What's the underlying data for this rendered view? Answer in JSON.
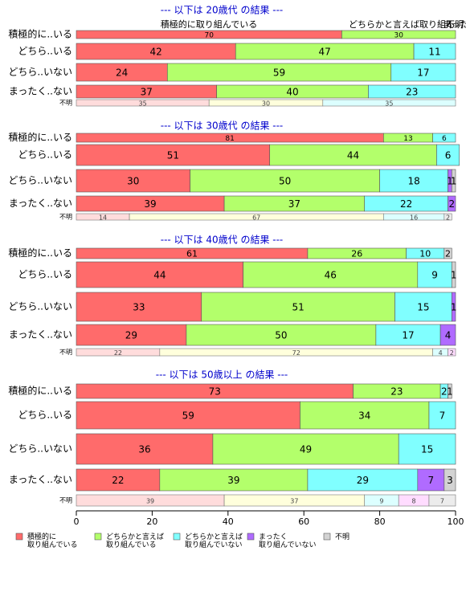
{
  "colors": {
    "c1": "#ff6b6b",
    "c2": "#b3ff6b",
    "c3": "#80ffff",
    "c4": "#b06bff",
    "c5": "#d3d3d3",
    "unknown_fills": [
      "#ffdcdc",
      "#ffffdc",
      "#dcffff",
      "#ffdcff",
      "#ececec"
    ],
    "title": "#0000cc"
  },
  "axis": {
    "ticks": [
      "0",
      "20",
      "40",
      "60",
      "80",
      "100"
    ]
  },
  "legend": {
    "items": [
      {
        "text": "積極的に\n取り組んでいる",
        "color": "#ff6b6b"
      },
      {
        "text": "どちらかと言えば\n取り組んでいる",
        "color": "#b3ff6b"
      },
      {
        "text": "どちらかと言えば\n取り組んでいない",
        "color": "#80ffff"
      },
      {
        "text": "まったく\n取り組んでいない",
        "color": "#b06bff"
      },
      {
        "text": "不明",
        "color": "#d3d3d3"
      }
    ]
  },
  "header_labels": {
    "left": "積極的に取り組んでいる",
    "right": "どちらかと言えば取り組ん",
    "overlap_a": "まった",
    "overlap_b": "不明"
  },
  "chart_data": {
    "type": "bar",
    "orientation": "horizontal-stacked",
    "xlim": [
      0,
      100
    ],
    "series_names": [
      "積極的に取り組んでいる",
      "どちらかと言えば取り組んでいる",
      "どちらかと言えば取り組んでいない",
      "まったく取り組んでいない",
      "不明"
    ],
    "panels": [
      {
        "title": "--- 以下は 20歳代 の結果 ---",
        "rows": [
          {
            "label": "積極的に..いる",
            "values": [
              70,
              30,
              0,
              0,
              0
            ]
          },
          {
            "label": "どちら..いる",
            "values": [
              42,
              47,
              11,
              0,
              0
            ]
          },
          {
            "label": "どちら..いない",
            "values": [
              24,
              59,
              17,
              0,
              0
            ]
          },
          {
            "label": "まったく..ない",
            "values": [
              37,
              40,
              23,
              0,
              0
            ]
          }
        ],
        "unknown": {
          "label": "不明",
          "values": [
            35,
            30,
            35,
            0,
            0
          ]
        }
      },
      {
        "title": "--- 以下は 30歳代 の結果 ---",
        "rows": [
          {
            "label": "積極的に..いる",
            "values": [
              81,
              13,
              6,
              0,
              0
            ]
          },
          {
            "label": "どちら..いる",
            "values": [
              51,
              44,
              6,
              0,
              0
            ]
          },
          {
            "label": "どちら..いない",
            "values": [
              30,
              50,
              18,
              1,
              1
            ]
          },
          {
            "label": "まったく..ない",
            "values": [
              39,
              37,
              22,
              2,
              0
            ]
          }
        ],
        "unknown": {
          "label": "不明",
          "values": [
            14,
            67,
            16,
            0,
            2
          ]
        }
      },
      {
        "title": "--- 以下は 40歳代 の結果 ---",
        "rows": [
          {
            "label": "積極的に..いる",
            "values": [
              61,
              26,
              10,
              0,
              2
            ]
          },
          {
            "label": "どちら..いる",
            "values": [
              44,
              46,
              9,
              0,
              1
            ]
          },
          {
            "label": "どちら..いない",
            "values": [
              33,
              51,
              15,
              1,
              0
            ]
          },
          {
            "label": "まったく..ない",
            "values": [
              29,
              50,
              17,
              4,
              0
            ]
          }
        ],
        "unknown": {
          "label": "不明",
          "values": [
            22,
            72,
            4,
            2,
            0
          ]
        }
      },
      {
        "title": "--- 以下は 50歳以上 の結果 ---",
        "rows": [
          {
            "label": "積極的に..いる",
            "values": [
              73,
              23,
              2,
              0,
              1
            ]
          },
          {
            "label": "どちら..いる",
            "values": [
              59,
              34,
              7,
              0,
              0
            ]
          },
          {
            "label": "どちら..いない",
            "values": [
              36,
              49,
              15,
              0,
              0
            ]
          },
          {
            "label": "まったく..ない",
            "values": [
              22,
              39,
              29,
              7,
              3
            ]
          }
        ],
        "unknown": {
          "label": "不明",
          "values": [
            39,
            37,
            9,
            8,
            7
          ]
        }
      }
    ]
  }
}
